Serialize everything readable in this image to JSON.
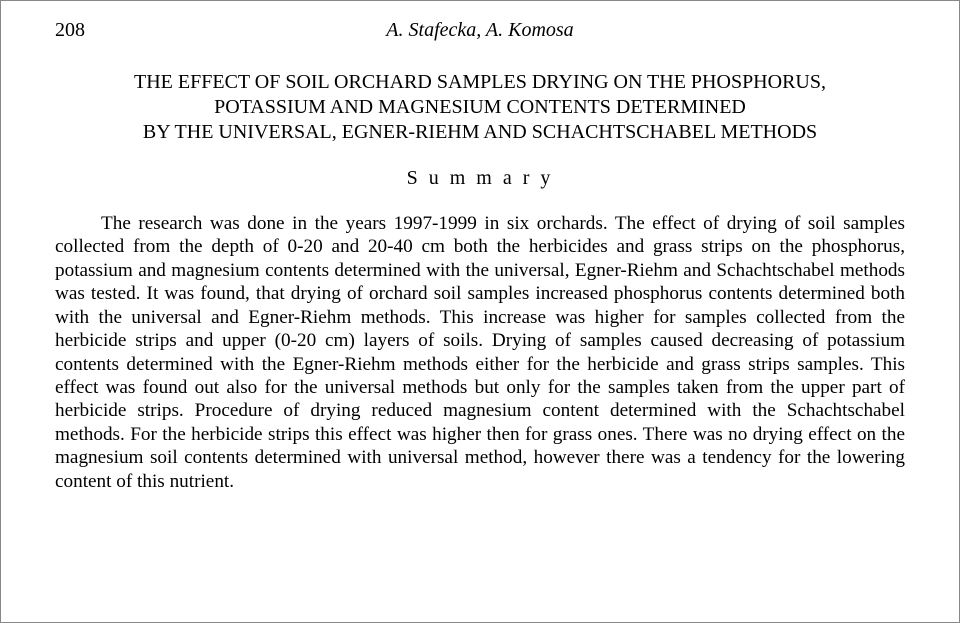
{
  "header": {
    "page_number": "208",
    "authors": "A. Stafecka, A. Komosa"
  },
  "title_lines": {
    "line1": "THE EFFECT OF SOIL ORCHARD SAMPLES DRYING ON THE PHOSPHORUS,",
    "line2": "POTASSIUM AND MAGNESIUM CONTENTS DETERMINED",
    "line3": "BY THE UNIVERSAL, EGNER-RIEHM AND SCHACHTSCHABEL METHODS"
  },
  "summary_label": "S u m m a r y",
  "body": "The research was done in the years 1997-1999 in six orchards. The effect of drying of soil samples collected from the depth of 0-20 and 20-40 cm both the herbicides and grass strips on the phosphorus, potassium and magnesium contents determined with the universal, Egner-Riehm and Schachtschabel methods was tested. It was found, that drying of orchard soil samples increased phosphorus contents determined both with the universal and Egner-Riehm methods. This increase was higher for samples collected from the herbicide strips and upper (0-20 cm) layers of soils. Drying of samples caused decreasing of potassium contents determined with the Egner-Riehm methods either for the herbicide and grass strips samples. This effect was found out also for the universal methods but only for the samples taken from the upper part of herbicide strips. Procedure of drying reduced magnesium content determined with the Schachtschabel methods. For the herbicide strips this effect was higher then for grass ones. There was no drying effect on the magnesium soil contents determined with universal method, however there was a tendency for the lowering content of this nutrient."
}
